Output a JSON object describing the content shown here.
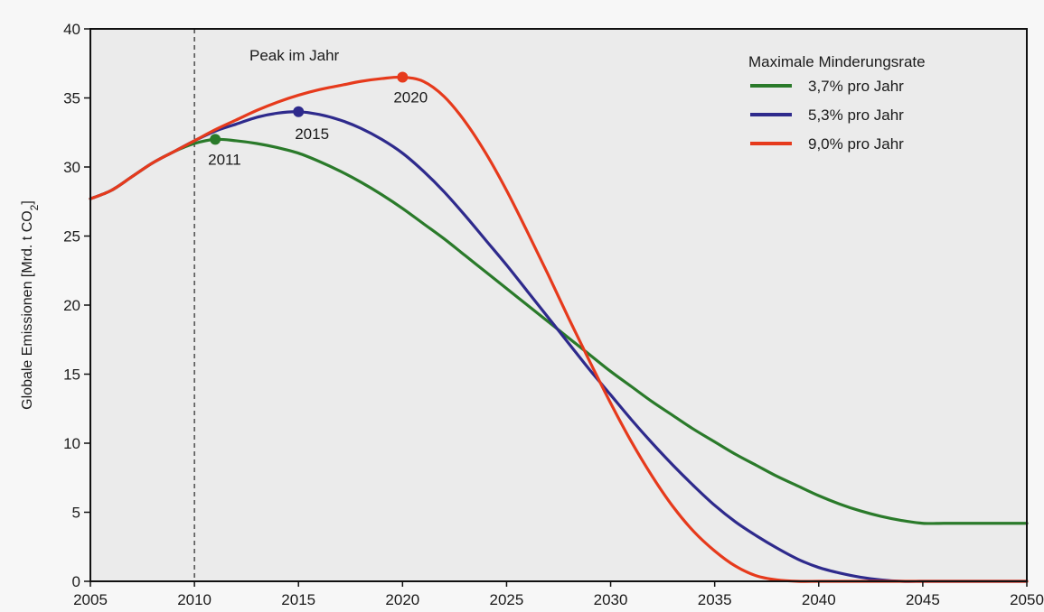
{
  "chart_data": {
    "type": "line",
    "xlabel": "",
    "ylabel_parts": [
      "Globale Emissionen [Mrd. t CO",
      "2",
      "]"
    ],
    "xlim": [
      2005,
      2050
    ],
    "ylim": [
      0,
      40
    ],
    "x_ticks": [
      2005,
      2010,
      2015,
      2020,
      2025,
      2030,
      2035,
      2040,
      2045,
      2050
    ],
    "y_ticks": [
      0,
      5,
      10,
      15,
      20,
      25,
      30,
      35,
      40
    ],
    "grid": false,
    "legend_position": "top-right",
    "legend_title": "Maximale Minderungsrate",
    "reference_line": {
      "x": 2010,
      "style": "dashed"
    },
    "annotation": "Peak im Jahr",
    "series": [
      {
        "name": "3,7% pro Jahr",
        "color": "#2a7a2a",
        "x": [
          2005,
          2006,
          2007,
          2008,
          2009,
          2010,
          2011,
          2012,
          2013,
          2014,
          2015,
          2016,
          2017,
          2018,
          2019,
          2020,
          2021,
          2022,
          2023,
          2024,
          2025,
          2026,
          2027,
          2028,
          2029,
          2030,
          2031,
          2032,
          2033,
          2034,
          2035,
          2036,
          2037,
          2038,
          2039,
          2040,
          2041,
          2042,
          2043,
          2044,
          2045,
          2046,
          2047,
          2048,
          2049,
          2050
        ],
        "y": [
          27.7,
          28.3,
          29.3,
          30.3,
          31.1,
          31.7,
          32.0,
          31.9,
          31.7,
          31.4,
          31.0,
          30.4,
          29.7,
          28.9,
          28.0,
          27.0,
          25.9,
          24.8,
          23.6,
          22.4,
          21.2,
          20.0,
          18.8,
          17.6,
          16.4,
          15.2,
          14.1,
          13.0,
          12.0,
          11.0,
          10.1,
          9.2,
          8.4,
          7.6,
          6.9,
          6.2,
          5.6,
          5.1,
          4.7,
          4.4,
          4.2,
          4.2,
          4.2,
          4.2,
          4.2,
          4.2
        ],
        "peak": {
          "x": 2011,
          "y": 32.0,
          "label": "2011"
        }
      },
      {
        "name": "5,3% pro Jahr",
        "color": "#2e2a8c",
        "x": [
          2005,
          2006,
          2007,
          2008,
          2009,
          2010,
          2011,
          2012,
          2013,
          2014,
          2015,
          2016,
          2017,
          2018,
          2019,
          2020,
          2021,
          2022,
          2023,
          2024,
          2025,
          2026,
          2027,
          2028,
          2029,
          2030,
          2031,
          2032,
          2033,
          2034,
          2035,
          2036,
          2037,
          2038,
          2039,
          2040,
          2041,
          2042,
          2043,
          2044,
          2045,
          2046,
          2047,
          2048,
          2049,
          2050
        ],
        "y": [
          27.7,
          28.3,
          29.3,
          30.3,
          31.1,
          31.9,
          32.6,
          33.1,
          33.6,
          33.9,
          34.0,
          33.8,
          33.4,
          32.8,
          32.0,
          31.0,
          29.7,
          28.2,
          26.5,
          24.7,
          22.9,
          21.0,
          19.1,
          17.2,
          15.3,
          13.5,
          11.7,
          10.0,
          8.4,
          6.9,
          5.5,
          4.3,
          3.3,
          2.4,
          1.6,
          1.0,
          0.6,
          0.3,
          0.1,
          0.0,
          0.0,
          0.0,
          0.0,
          0.0,
          0.0,
          0.0
        ],
        "peak": {
          "x": 2015,
          "y": 34.0,
          "label": "2015"
        }
      },
      {
        "name": "9,0% pro Jahr",
        "color": "#e63a1c",
        "x": [
          2005,
          2006,
          2007,
          2008,
          2009,
          2010,
          2011,
          2012,
          2013,
          2014,
          2015,
          2016,
          2017,
          2018,
          2019,
          2020,
          2021,
          2022,
          2023,
          2024,
          2025,
          2026,
          2027,
          2028,
          2029,
          2030,
          2031,
          2032,
          2033,
          2034,
          2035,
          2036,
          2037,
          2038,
          2039,
          2040,
          2041,
          2042,
          2043,
          2044,
          2045,
          2046,
          2047,
          2048,
          2049,
          2050
        ],
        "y": [
          27.7,
          28.3,
          29.3,
          30.3,
          31.1,
          31.9,
          32.7,
          33.4,
          34.1,
          34.7,
          35.2,
          35.6,
          35.9,
          36.2,
          36.4,
          36.5,
          36.2,
          35.1,
          33.3,
          31.0,
          28.3,
          25.3,
          22.2,
          19.0,
          15.9,
          12.9,
          10.1,
          7.6,
          5.4,
          3.6,
          2.2,
          1.1,
          0.4,
          0.1,
          0.0,
          0.0,
          0.0,
          0.0,
          0.0,
          0.0,
          0.0,
          0.0,
          0.0,
          0.0,
          0.0,
          0.0
        ],
        "peak": {
          "x": 2020,
          "y": 36.5,
          "label": "2020"
        }
      }
    ]
  }
}
